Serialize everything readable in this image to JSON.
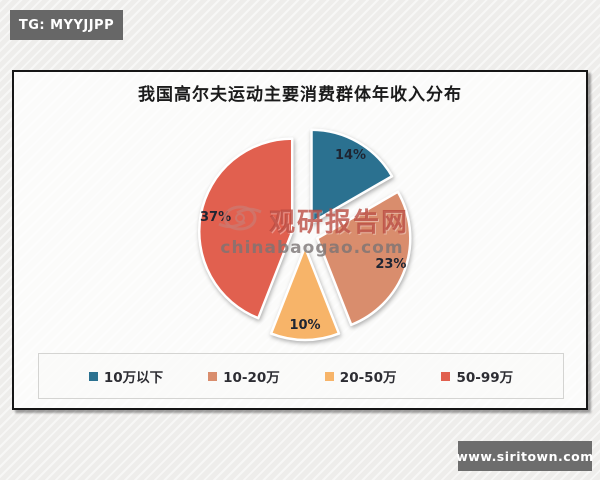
{
  "page": {
    "top_badge": "TG: MYYJJPP",
    "bottom_badge": "www.siritown.com"
  },
  "chart_data": {
    "type": "pie",
    "title": "我国高尔夫运动主要消费群体年收入分布",
    "legend_position": "bottom",
    "exploded": true,
    "start_angle_deg": 0,
    "slices": [
      {
        "label": "10万以下",
        "value": 14,
        "display": "14%",
        "color": "#2b7190"
      },
      {
        "label": "10-20万",
        "value": 23,
        "display": "23%",
        "color": "#d98d6d"
      },
      {
        "label": "20-50万",
        "value": 10,
        "display": "10%",
        "color": "#f7b469"
      },
      {
        "label": "50-99万",
        "value": 37,
        "display": "37%",
        "color": "#e1604f"
      }
    ]
  },
  "watermark": {
    "name": "观研报告网",
    "domain": "chinabaogao.com",
    "color": "#b8483d"
  }
}
